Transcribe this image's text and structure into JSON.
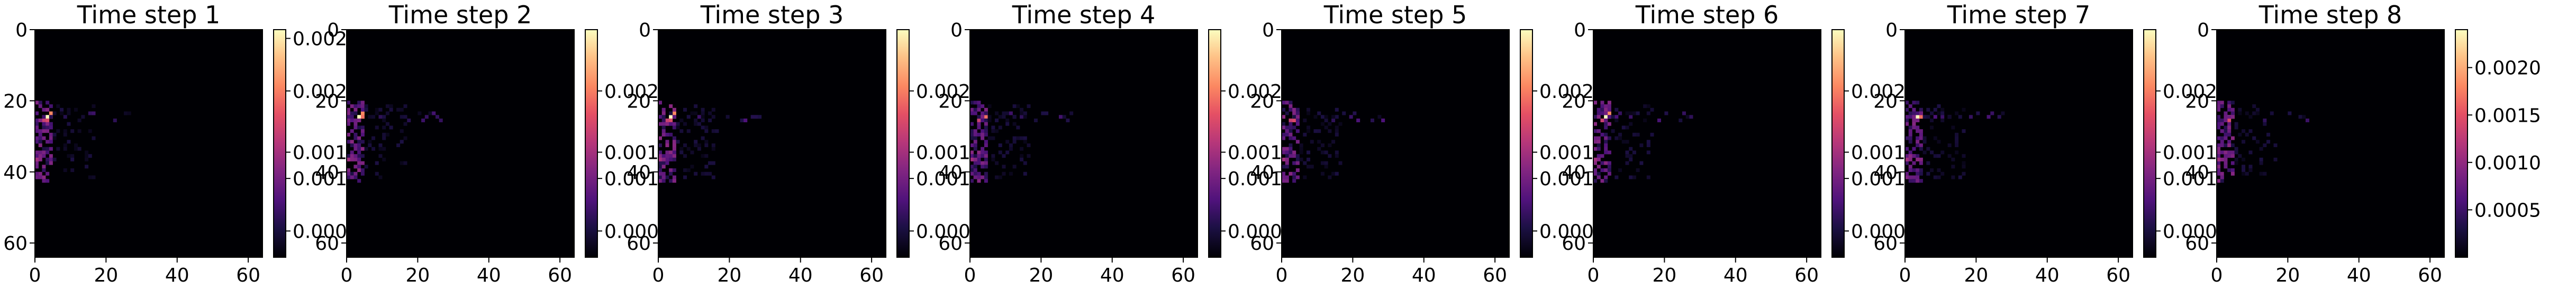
{
  "figure": {
    "colormap": "magma",
    "panel_count": 8
  },
  "chart_data": [
    {
      "type": "heatmap",
      "title": "Time step 1",
      "xlim": [
        0,
        64
      ],
      "ylim": [
        64,
        0
      ],
      "x_ticks": [
        "0",
        "20",
        "40",
        "60"
      ],
      "y_ticks": [
        "0",
        "20",
        "40",
        "60"
      ],
      "colorbar_ticks": [
        "0.000",
        "0.001",
        "0.001",
        "0.002",
        "0.0025"
      ],
      "colorbar_tick_values": [
        0.0003,
        0.0009,
        0.0012,
        0.0019,
        0.0025
      ],
      "vmax": 0.0026
    },
    {
      "type": "heatmap",
      "title": "Time step 2",
      "xlim": [
        0,
        64
      ],
      "ylim": [
        64,
        0
      ],
      "x_ticks": [
        "0",
        "20",
        "40",
        "60"
      ],
      "y_ticks": [
        "0",
        "20",
        "40",
        "60"
      ],
      "colorbar_ticks": [
        "0.000",
        "0.001",
        "0.001",
        "0.002"
      ],
      "colorbar_tick_values": [
        0.0003,
        0.0009,
        0.0012,
        0.0019
      ],
      "vmax": 0.0026
    },
    {
      "type": "heatmap",
      "title": "Time step 3",
      "xlim": [
        0,
        64
      ],
      "ylim": [
        64,
        0
      ],
      "x_ticks": [
        "0",
        "20",
        "40",
        "60"
      ],
      "y_ticks": [
        "0",
        "20",
        "40",
        "60"
      ],
      "colorbar_ticks": [
        "0.000",
        "0.001",
        "0.001",
        "0.002"
      ],
      "colorbar_tick_values": [
        0.0003,
        0.0009,
        0.0012,
        0.0019
      ],
      "vmax": 0.0026
    },
    {
      "type": "heatmap",
      "title": "Time step 4",
      "xlim": [
        0,
        64
      ],
      "ylim": [
        64,
        0
      ],
      "x_ticks": [
        "0",
        "20",
        "40",
        "60"
      ],
      "y_ticks": [
        "0",
        "20",
        "40",
        "60"
      ],
      "colorbar_ticks": [
        "0.000",
        "0.001",
        "0.001",
        "0.002"
      ],
      "colorbar_tick_values": [
        0.0003,
        0.0009,
        0.0012,
        0.0019
      ],
      "vmax": 0.0026
    },
    {
      "type": "heatmap",
      "title": "Time step 5",
      "xlim": [
        0,
        64
      ],
      "ylim": [
        64,
        0
      ],
      "x_ticks": [
        "0",
        "20",
        "40",
        "60"
      ],
      "y_ticks": [
        "0",
        "20",
        "40",
        "60"
      ],
      "colorbar_ticks": [
        "0.000",
        "0.001",
        "0.001",
        "0.002"
      ],
      "colorbar_tick_values": [
        0.0003,
        0.0009,
        0.0012,
        0.0019
      ],
      "vmax": 0.0026
    },
    {
      "type": "heatmap",
      "title": "Time step 6",
      "xlim": [
        0,
        64
      ],
      "ylim": [
        64,
        0
      ],
      "x_ticks": [
        "0",
        "20",
        "40",
        "60"
      ],
      "y_ticks": [
        "0",
        "20",
        "40",
        "60"
      ],
      "colorbar_ticks": [
        "0.000",
        "0.001",
        "0.001",
        "0.002"
      ],
      "colorbar_tick_values": [
        0.0003,
        0.0009,
        0.0012,
        0.0019
      ],
      "vmax": 0.0026
    },
    {
      "type": "heatmap",
      "title": "Time step 7",
      "xlim": [
        0,
        64
      ],
      "ylim": [
        64,
        0
      ],
      "x_ticks": [
        "0",
        "20",
        "40",
        "60"
      ],
      "y_ticks": [
        "0",
        "20",
        "40",
        "60"
      ],
      "colorbar_ticks": [
        "0.000",
        "0.001",
        "0.001",
        "0.002"
      ],
      "colorbar_tick_values": [
        0.0003,
        0.0009,
        0.0012,
        0.0019
      ],
      "vmax": 0.0026
    },
    {
      "type": "heatmap",
      "title": "Time step 8",
      "xlim": [
        0,
        64
      ],
      "ylim": [
        64,
        0
      ],
      "x_ticks": [
        "0",
        "20",
        "40",
        "60"
      ],
      "y_ticks": [
        "0",
        "20",
        "40",
        "60"
      ],
      "colorbar_ticks": [
        "0.0005",
        "0.0010",
        "0.0015",
        "0.0020"
      ],
      "colorbar_tick_values": [
        0.0005,
        0.001,
        0.0015,
        0.002
      ],
      "vmax": 0.0024
    }
  ]
}
